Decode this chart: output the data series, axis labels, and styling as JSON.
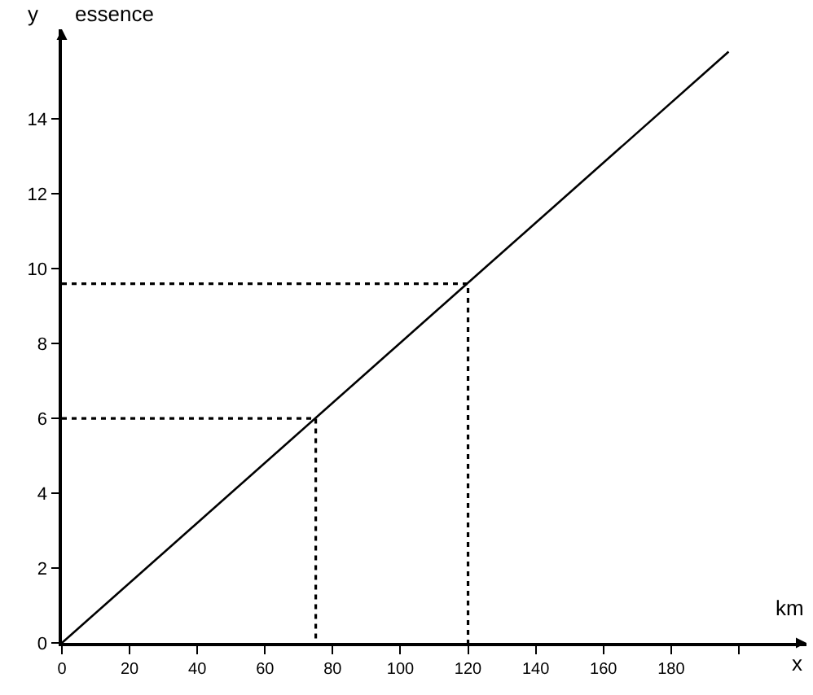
{
  "chart_data": {
    "type": "line",
    "xlabel": "x",
    "ylabel": "essence",
    "annotations": [
      "y",
      "km"
    ],
    "series": [
      {
        "x": [
          0,
          197
        ],
        "values": [
          0,
          15.8
        ],
        "color": "#000000",
        "line_style": "solid"
      },
      {
        "x": [
          0,
          75,
          75
        ],
        "values": [
          6,
          6,
          0
        ],
        "color": "#000000",
        "line_style": "dotted"
      },
      {
        "x": [
          0,
          120,
          120
        ],
        "values": [
          9.6,
          9.6,
          0
        ],
        "color": "#000000",
        "line_style": "dotted"
      }
    ],
    "xlim": [
      0,
      220
    ],
    "ylim": [
      0,
      16.4
    ],
    "xticks": [
      0,
      20,
      40,
      60,
      80,
      100,
      120,
      140,
      160,
      180,
      {
        "value": 200,
        "label": null
      }
    ],
    "yticks": [
      0,
      2,
      4,
      6,
      8,
      10,
      12,
      14
    ],
    "marker": "none"
  }
}
